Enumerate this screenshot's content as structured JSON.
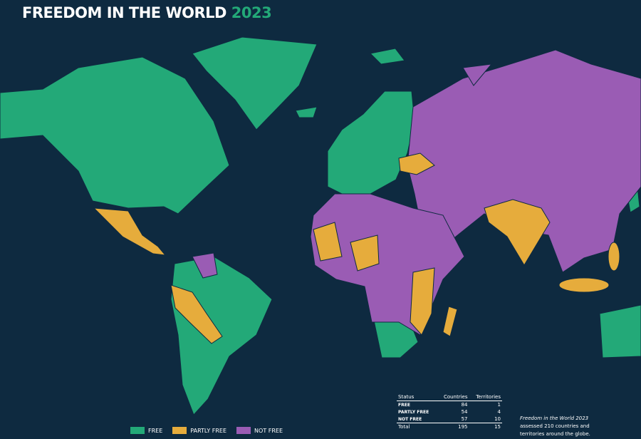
{
  "header": {
    "title": "FREEDOM IN THE WORLD",
    "year": "2023"
  },
  "legend": [
    {
      "label": "FREE",
      "color": "#23a978"
    },
    {
      "label": "PARTLY FREE",
      "color": "#e6ac3c"
    },
    {
      "label": "NOT FREE",
      "color": "#9a5cb4"
    }
  ],
  "table": {
    "columns": [
      "Status",
      "Countries",
      "Territories"
    ],
    "rows": [
      [
        "FREE",
        84,
        1
      ],
      [
        "PARTLY FREE",
        54,
        4
      ],
      [
        "NOT FREE",
        57,
        10
      ]
    ],
    "total": [
      "Total",
      195,
      15
    ]
  },
  "note": {
    "title": "Freedom in the World 2023",
    "text": "assessed 210 countries and territories around the globe."
  }
}
